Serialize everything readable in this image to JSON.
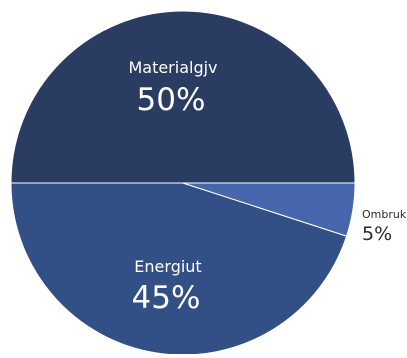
{
  "chart_data": {
    "type": "pie",
    "title": "",
    "start": "right-horizontal",
    "direction": "counterclockwise",
    "legend": "none",
    "slices": [
      {
        "label": "Materialgjv",
        "value": 50,
        "value_label": "50%",
        "color": "#2b3c62",
        "label_color": "#ffffff",
        "label_position": "inside"
      },
      {
        "label": "Energiut",
        "value": 45,
        "value_label": "45%",
        "color": "#324f86",
        "label_color": "#ffffff",
        "label_position": "inside"
      },
      {
        "label": "Ombruk",
        "value": 5,
        "value_label": "5%",
        "color": "#4667ae",
        "label_color": "#2b2b2b",
        "label_position": "outside"
      }
    ],
    "separator_color": "#ffffff"
  }
}
